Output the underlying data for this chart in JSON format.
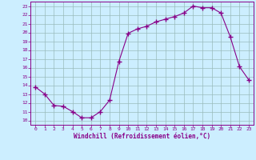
{
  "x": [
    0,
    1,
    2,
    3,
    4,
    5,
    6,
    7,
    8,
    9,
    10,
    11,
    12,
    13,
    14,
    15,
    16,
    17,
    18,
    19,
    20,
    21,
    22,
    23
  ],
  "y": [
    13.8,
    13.0,
    11.7,
    11.6,
    11.0,
    10.3,
    10.3,
    11.0,
    12.3,
    16.7,
    19.9,
    20.4,
    20.7,
    21.2,
    21.5,
    21.8,
    22.2,
    23.0,
    22.8,
    22.8,
    22.2,
    19.5,
    16.1,
    14.6
  ],
  "line_color": "#880088",
  "marker": "+",
  "marker_size": 4,
  "bg_color": "#cceeff",
  "grid_color": "#99bbbb",
  "xlabel": "Windchill (Refroidissement éolien,°C)",
  "xlim": [
    -0.5,
    23.5
  ],
  "ylim": [
    9.5,
    23.5
  ],
  "yticks": [
    10,
    11,
    12,
    13,
    14,
    15,
    16,
    17,
    18,
    19,
    20,
    21,
    22,
    23
  ],
  "xticks": [
    0,
    1,
    2,
    3,
    4,
    5,
    6,
    7,
    8,
    9,
    10,
    11,
    12,
    13,
    14,
    15,
    16,
    17,
    18,
    19,
    20,
    21,
    22,
    23
  ]
}
